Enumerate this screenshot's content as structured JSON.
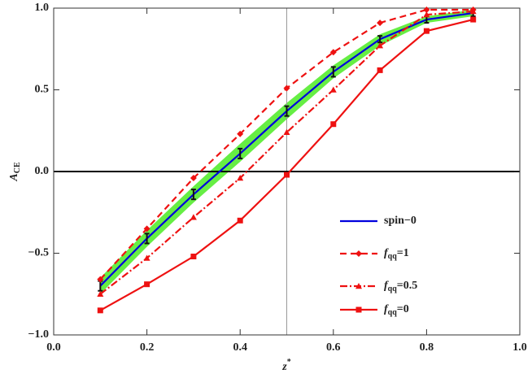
{
  "chart_data": {
    "type": "line",
    "x": [
      0.1,
      0.2,
      0.3,
      0.4,
      0.5,
      0.6,
      0.7,
      0.8,
      0.9
    ],
    "xlim": [
      0,
      1
    ],
    "xticks": [
      {
        "value": 0,
        "label": "0.0"
      },
      0.2,
      0.4,
      0.6,
      0.8,
      {
        "value": 1,
        "label": "1.0"
      }
    ],
    "ylim": [
      -1,
      1
    ],
    "yticks": [
      {
        "value": -1,
        "label": "−1.0"
      },
      {
        "value": -0.5,
        "label": "−0.5"
      },
      {
        "value": 0,
        "label": "0.0"
      },
      0.5,
      {
        "value": 1,
        "label": "1.0"
      }
    ],
    "x_label": {
      "italic": "z",
      "sup": "*"
    },
    "y_label": {
      "italic": "A",
      "sub": "CE"
    },
    "vline": 0.5,
    "hline": 0,
    "band": {
      "color": "#66ee44",
      "upper": [
        -0.65,
        -0.36,
        -0.09,
        0.17,
        0.42,
        0.65,
        0.84,
        0.95,
        0.99
      ],
      "lower": [
        -0.75,
        -0.46,
        -0.19,
        0.06,
        0.32,
        0.57,
        0.77,
        0.91,
        0.95
      ]
    },
    "series": [
      {
        "label": {
          "italic": "",
          "sub": "",
          "rest": "spin−0"
        },
        "color": "#0000dd",
        "dash": "",
        "marker": "none",
        "values": [
          -0.7,
          -0.41,
          -0.14,
          0.11,
          0.37,
          0.61,
          0.81,
          0.93,
          0.97
        ],
        "errors": [
          0.03,
          0.03,
          0.03,
          0.03,
          0.03,
          0.03,
          0.02,
          0.02,
          0.02
        ]
      },
      {
        "label": {
          "italic": "f",
          "sub": "qq",
          "rest": "=1"
        },
        "color": "#ee1111",
        "dash": "8,5",
        "marker": "diamond",
        "values": [
          -0.66,
          -0.35,
          -0.04,
          0.23,
          0.51,
          0.73,
          0.91,
          0.99,
          0.99
        ]
      },
      {
        "label": {
          "italic": "f",
          "sub": "qq",
          "rest": "=0.5"
        },
        "color": "#ee1111",
        "dash": "9,3,2,3",
        "marker": "triangle",
        "values": [
          -0.75,
          -0.53,
          -0.28,
          -0.04,
          0.24,
          0.5,
          0.77,
          0.96,
          0.98
        ]
      },
      {
        "label": {
          "italic": "f",
          "sub": "qq",
          "rest": "=0"
        },
        "color": "#ee1111",
        "dash": "",
        "marker": "square",
        "values": [
          -0.85,
          -0.69,
          -0.52,
          -0.3,
          -0.02,
          0.29,
          0.62,
          0.86,
          0.93
        ]
      }
    ]
  }
}
